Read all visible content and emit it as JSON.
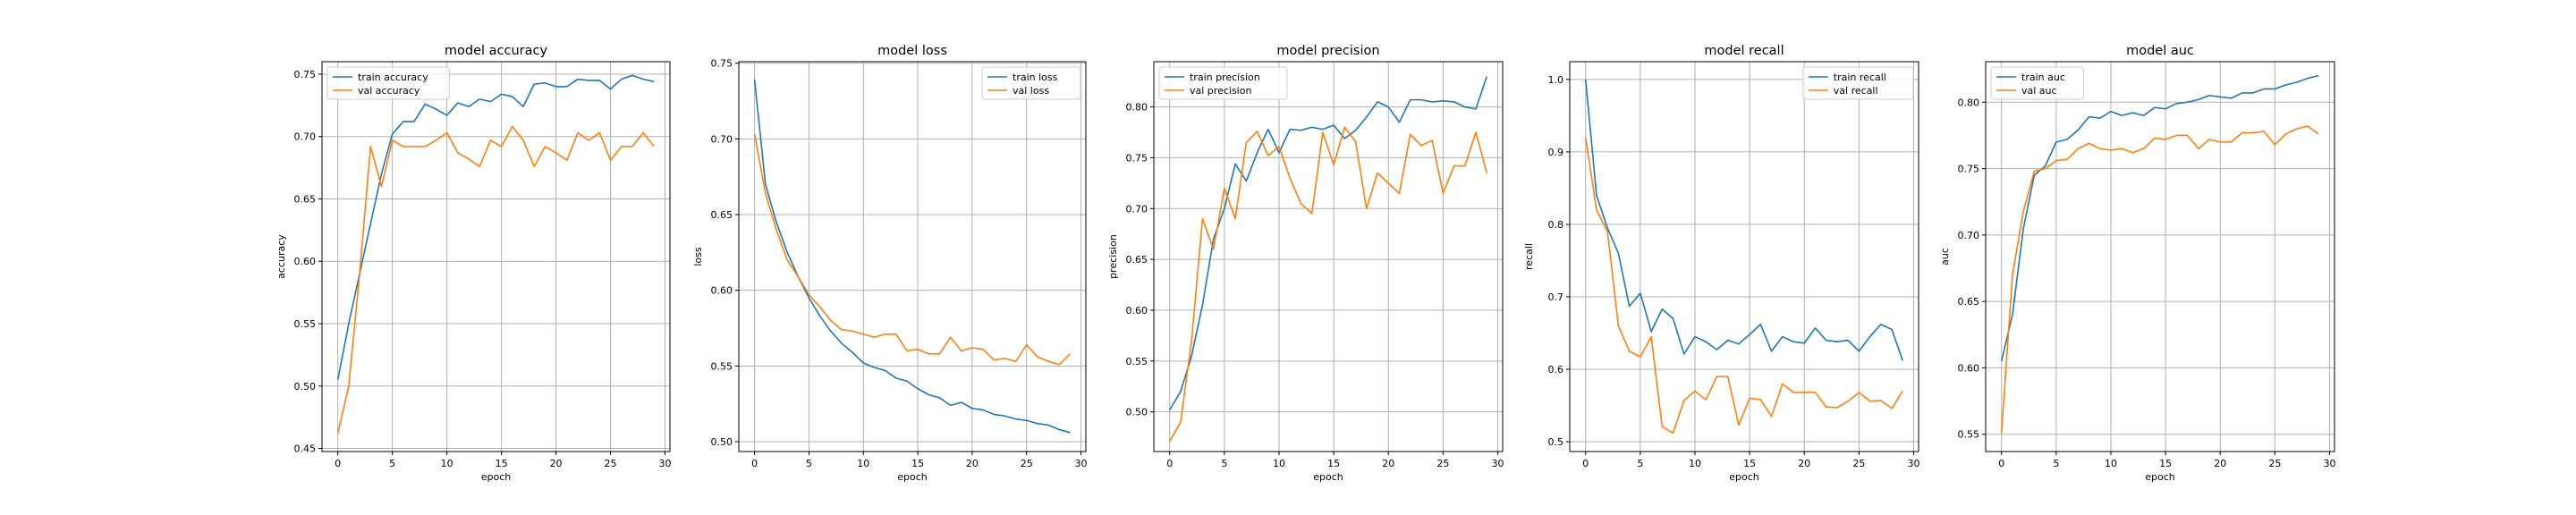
{
  "chart_data": [
    {
      "type": "line",
      "title": "model accuracy",
      "xlabel": "epoch",
      "ylabel": "accuracy",
      "xlim": [
        -1.45,
        30.45
      ],
      "ylim": [
        0.4475,
        0.76
      ],
      "xticks": [
        0,
        5,
        10,
        15,
        20,
        25,
        30
      ],
      "yticks": [
        0.45,
        0.5,
        0.55,
        0.6,
        0.65,
        0.7,
        0.75
      ],
      "ytick_labels": [
        "0.45",
        "0.50",
        "0.55",
        "0.60",
        "0.65",
        "0.70",
        "0.75"
      ],
      "legend": "upper-left",
      "grid": true,
      "x": [
        0,
        1,
        2,
        3,
        4,
        5,
        6,
        7,
        8,
        9,
        10,
        11,
        12,
        13,
        14,
        15,
        16,
        17,
        18,
        19,
        20,
        21,
        22,
        23,
        24,
        25,
        26,
        27,
        28,
        29
      ],
      "series": [
        {
          "name": "train accuracy",
          "color": "#1f77b4",
          "values": [
            0.505,
            0.55,
            0.59,
            0.63,
            0.67,
            0.702,
            0.712,
            0.712,
            0.726,
            0.722,
            0.717,
            0.727,
            0.724,
            0.73,
            0.728,
            0.734,
            0.732,
            0.724,
            0.742,
            0.743,
            0.74,
            0.74,
            0.746,
            0.745,
            0.745,
            0.738,
            0.746,
            0.749,
            0.746,
            0.744
          ]
        },
        {
          "name": "val accuracy",
          "color": "#ff7f0e",
          "values": [
            0.462,
            0.5,
            0.59,
            0.692,
            0.66,
            0.697,
            0.692,
            0.692,
            0.692,
            0.697,
            0.703,
            0.687,
            0.682,
            0.676,
            0.697,
            0.692,
            0.708,
            0.697,
            0.676,
            0.692,
            0.687,
            0.681,
            0.703,
            0.697,
            0.703,
            0.681,
            0.692,
            0.692,
            0.703,
            0.692
          ]
        }
      ]
    },
    {
      "type": "line",
      "title": "model loss",
      "xlabel": "epoch",
      "ylabel": "loss",
      "xlim": [
        -1.45,
        30.45
      ],
      "ylim": [
        0.4935,
        0.751
      ],
      "xticks": [
        0,
        5,
        10,
        15,
        20,
        25,
        30
      ],
      "yticks": [
        0.5,
        0.55,
        0.6,
        0.65,
        0.7,
        0.75
      ],
      "ytick_labels": [
        "0.50",
        "0.55",
        "0.60",
        "0.65",
        "0.70",
        "0.75"
      ],
      "legend": "upper-right",
      "grid": true,
      "x": [
        0,
        1,
        2,
        3,
        4,
        5,
        6,
        7,
        8,
        9,
        10,
        11,
        12,
        13,
        14,
        15,
        16,
        17,
        18,
        19,
        20,
        21,
        22,
        23,
        24,
        25,
        26,
        27,
        28,
        29
      ],
      "series": [
        {
          "name": "train loss",
          "color": "#1f77b4",
          "values": [
            0.739,
            0.67,
            0.645,
            0.625,
            0.609,
            0.595,
            0.583,
            0.573,
            0.565,
            0.559,
            0.552,
            0.549,
            0.547,
            0.542,
            0.54,
            0.535,
            0.531,
            0.529,
            0.524,
            0.526,
            0.522,
            0.521,
            0.518,
            0.517,
            0.515,
            0.514,
            0.512,
            0.511,
            0.508,
            0.506
          ]
        },
        {
          "name": "val loss",
          "color": "#ff7f0e",
          "values": [
            0.703,
            0.664,
            0.64,
            0.62,
            0.609,
            0.597,
            0.589,
            0.58,
            0.574,
            0.573,
            0.571,
            0.569,
            0.571,
            0.571,
            0.56,
            0.561,
            0.558,
            0.558,
            0.569,
            0.56,
            0.562,
            0.561,
            0.554,
            0.555,
            0.553,
            0.564,
            0.556,
            0.553,
            0.551,
            0.558
          ]
        }
      ]
    },
    {
      "type": "line",
      "title": "model precision",
      "xlabel": "epoch",
      "ylabel": "precision",
      "xlim": [
        -1.45,
        30.45
      ],
      "ylim": [
        0.461,
        0.8445
      ],
      "xticks": [
        0,
        5,
        10,
        15,
        20,
        25,
        30
      ],
      "yticks": [
        0.5,
        0.55,
        0.6,
        0.65,
        0.7,
        0.75,
        0.8
      ],
      "ytick_labels": [
        "0.50",
        "0.55",
        "0.60",
        "0.65",
        "0.70",
        "0.75",
        "0.80"
      ],
      "legend": "upper-left",
      "grid": true,
      "x": [
        0,
        1,
        2,
        3,
        4,
        5,
        6,
        7,
        8,
        9,
        10,
        11,
        12,
        13,
        14,
        15,
        16,
        17,
        18,
        19,
        20,
        21,
        22,
        23,
        24,
        25,
        26,
        27,
        28,
        29
      ],
      "series": [
        {
          "name": "train precision",
          "color": "#1f77b4",
          "values": [
            0.502,
            0.52,
            0.555,
            0.605,
            0.67,
            0.7,
            0.744,
            0.727,
            0.755,
            0.778,
            0.755,
            0.778,
            0.777,
            0.78,
            0.778,
            0.782,
            0.769,
            0.777,
            0.79,
            0.805,
            0.8,
            0.785,
            0.807,
            0.807,
            0.805,
            0.806,
            0.805,
            0.8,
            0.798,
            0.83
          ]
        },
        {
          "name": "val precision",
          "color": "#ff7f0e",
          "values": [
            0.471,
            0.49,
            0.57,
            0.69,
            0.66,
            0.72,
            0.69,
            0.765,
            0.776,
            0.752,
            0.761,
            0.73,
            0.705,
            0.695,
            0.775,
            0.743,
            0.78,
            0.766,
            0.7,
            0.735,
            0.725,
            0.715,
            0.773,
            0.762,
            0.767,
            0.715,
            0.742,
            0.742,
            0.775,
            0.735
          ]
        }
      ]
    },
    {
      "type": "line",
      "title": "model recall",
      "xlabel": "epoch",
      "ylabel": "recall",
      "xlim": [
        -1.45,
        30.45
      ],
      "ylim": [
        0.4865,
        1.0245
      ],
      "xticks": [
        0,
        5,
        10,
        15,
        20,
        25,
        30
      ],
      "yticks": [
        0.5,
        0.6,
        0.7,
        0.8,
        0.9,
        1.0
      ],
      "ytick_labels": [
        "0.5",
        "0.6",
        "0.7",
        "0.8",
        "0.9",
        "1.0"
      ],
      "legend": "upper-right",
      "grid": true,
      "x": [
        0,
        1,
        2,
        3,
        4,
        5,
        6,
        7,
        8,
        9,
        10,
        11,
        12,
        13,
        14,
        15,
        16,
        17,
        18,
        19,
        20,
        21,
        22,
        23,
        24,
        25,
        26,
        27,
        28,
        29
      ],
      "series": [
        {
          "name": "train recall",
          "color": "#1f77b4",
          "values": [
            1.0,
            0.84,
            0.795,
            0.76,
            0.687,
            0.705,
            0.652,
            0.683,
            0.67,
            0.621,
            0.645,
            0.638,
            0.627,
            0.64,
            0.635,
            0.648,
            0.662,
            0.625,
            0.645,
            0.638,
            0.636,
            0.657,
            0.64,
            0.638,
            0.64,
            0.625,
            0.645,
            0.662,
            0.655,
            0.612
          ]
        },
        {
          "name": "val recall",
          "color": "#ff7f0e",
          "values": [
            0.92,
            0.82,
            0.79,
            0.66,
            0.625,
            0.617,
            0.645,
            0.521,
            0.512,
            0.557,
            0.57,
            0.558,
            0.59,
            0.59,
            0.523,
            0.56,
            0.558,
            0.535,
            0.58,
            0.568,
            0.568,
            0.568,
            0.548,
            0.547,
            0.556,
            0.568,
            0.556,
            0.557,
            0.546,
            0.57
          ]
        }
      ]
    },
    {
      "type": "line",
      "title": "model auc",
      "xlabel": "epoch",
      "ylabel": "auc",
      "xlim": [
        -1.45,
        30.45
      ],
      "ylim": [
        0.537,
        0.8305
      ],
      "xticks": [
        0,
        5,
        10,
        15,
        20,
        25,
        30
      ],
      "yticks": [
        0.55,
        0.6,
        0.65,
        0.7,
        0.75,
        0.8
      ],
      "ytick_labels": [
        "0.55",
        "0.60",
        "0.65",
        "0.70",
        "0.75",
        "0.80"
      ],
      "legend": "upper-left",
      "grid": true,
      "x": [
        0,
        1,
        2,
        3,
        4,
        5,
        6,
        7,
        8,
        9,
        10,
        11,
        12,
        13,
        14,
        15,
        16,
        17,
        18,
        19,
        20,
        21,
        22,
        23,
        24,
        25,
        26,
        27,
        28,
        29
      ],
      "series": [
        {
          "name": "train auc",
          "color": "#1f77b4",
          "values": [
            0.605,
            0.64,
            0.705,
            0.745,
            0.752,
            0.77,
            0.772,
            0.779,
            0.789,
            0.788,
            0.793,
            0.79,
            0.792,
            0.79,
            0.796,
            0.795,
            0.799,
            0.8,
            0.802,
            0.805,
            0.804,
            0.803,
            0.807,
            0.807,
            0.81,
            0.81,
            0.813,
            0.815,
            0.818,
            0.82
          ]
        },
        {
          "name": "val auc",
          "color": "#ff7f0e",
          "values": [
            0.551,
            0.67,
            0.718,
            0.748,
            0.75,
            0.756,
            0.757,
            0.765,
            0.769,
            0.765,
            0.764,
            0.765,
            0.762,
            0.765,
            0.773,
            0.772,
            0.775,
            0.775,
            0.765,
            0.772,
            0.77,
            0.77,
            0.777,
            0.777,
            0.778,
            0.768,
            0.776,
            0.78,
            0.782,
            0.776
          ]
        }
      ]
    }
  ]
}
